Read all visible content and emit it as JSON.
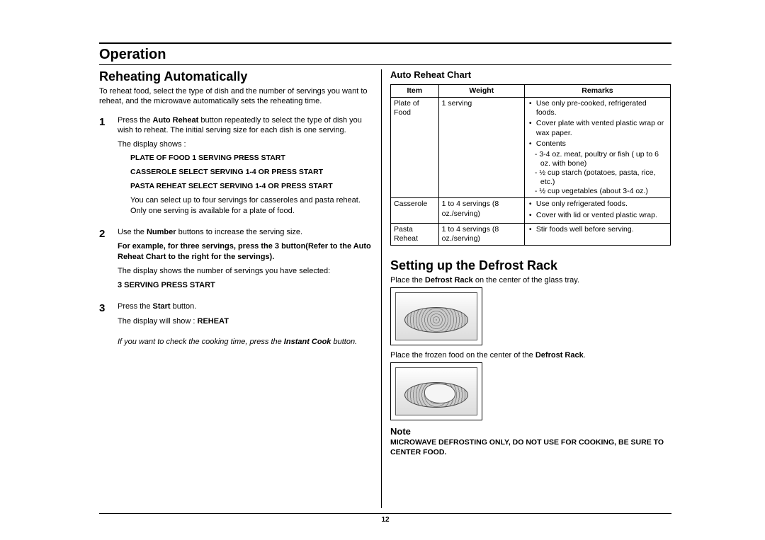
{
  "page_number": "12",
  "section_title": "Operation",
  "left": {
    "heading": "Reheating Automatically",
    "intro": "To reheat food, select the type of dish and the number of servings you want to reheat, and the microwave automatically sets the reheating time.",
    "steps": [
      {
        "num": "1",
        "lines": [
          {
            "t": "Press the ",
            "b": false
          },
          {
            "t": "Auto Reheat",
            "b": true
          },
          {
            "t": " button repeatedly to select the type of dish you wish to reheat. The initial serving size for each dish is one serving.",
            "b": false
          }
        ],
        "after": [
          {
            "text": "The display shows :",
            "cls": ""
          },
          {
            "text": "PLATE OF FOOD 1 SERVING PRESS START",
            "cls": "display-line"
          },
          {
            "text": "CASSEROLE SELECT SERVING 1-4 OR PRESS START",
            "cls": "display-line"
          },
          {
            "text": "PASTA REHEAT SELECT SERVING 1-4 OR PRESS START",
            "cls": "display-line"
          },
          {
            "text": "You can select up to four servings for casseroles and pasta reheat. Only one serving is available for a plate of food.",
            "cls": "indent"
          }
        ]
      },
      {
        "num": "2",
        "lines": [
          {
            "t": "Use the ",
            "b": false
          },
          {
            "t": "Number",
            "b": true
          },
          {
            "t": " buttons to increase the serving size.",
            "b": false
          }
        ],
        "after": [
          {
            "text": "For example, for three servings, press the 3 button(Refer to the Auto Reheat Chart to the right for the servings).",
            "cls": "bold"
          },
          {
            "text": "The display shows the number of servings you have selected:",
            "cls": ""
          },
          {
            "text": "3 SERVING PRESS START",
            "cls": "bold"
          }
        ]
      },
      {
        "num": "3",
        "lines": [
          {
            "t": "Press the ",
            "b": false
          },
          {
            "t": "Start",
            "b": true
          },
          {
            "t": " button.",
            "b": false
          }
        ],
        "after": [
          {
            "text": "The display will show : ",
            "cls": "",
            "trail_bold": "REHEAT"
          }
        ]
      }
    ],
    "footnote_pre": "If you want to check the cooking time, press the ",
    "footnote_bold": "Instant Cook",
    "footnote_post": " button."
  },
  "right": {
    "chart_title": "Auto Reheat Chart",
    "columns": [
      "Item",
      "Weight",
      "Remarks"
    ],
    "rows": [
      {
        "item": "Plate of Food",
        "weight": "1 serving",
        "remarks": [
          "Use only pre-cooked, refrigerated foods.",
          "Cover plate with vented plastic wrap or wax paper.",
          "Contents"
        ],
        "sub": [
          "- 3-4 oz. meat, poultry or fish ( up to 6 oz. with bone)",
          "- ½ cup starch (potatoes, pasta, rice, etc.)",
          "- ½ cup vegetables (about 3-4 oz.)"
        ]
      },
      {
        "item": "Casserole",
        "weight": "1 to 4 servings (8 oz./serving)",
        "remarks": [
          "Use only refrigerated foods.",
          "Cover with lid or vented plastic wrap."
        ],
        "merge_next": true
      },
      {
        "item": "Pasta Reheat",
        "weight": "1 to 4 servings (8 oz./serving)",
        "remarks": [
          "Stir foods well before serving."
        ],
        "merged": true
      }
    ],
    "defrost_heading": "Setting up the Defrost Rack",
    "defrost_p1_pre": "Place the ",
    "defrost_p1_bold": "Defrost Rack",
    "defrost_p1_post": " on the center of the glass tray.",
    "defrost_p2_pre": "Place the frozen food on the center of the ",
    "defrost_p2_bold": "Defrost Rack",
    "defrost_p2_post": ".",
    "note_title": "Note",
    "note_body": "MICROWAVE DEFROSTING ONLY, DO NOT USE FOR COOKING, BE SURE TO CENTER FOOD."
  }
}
